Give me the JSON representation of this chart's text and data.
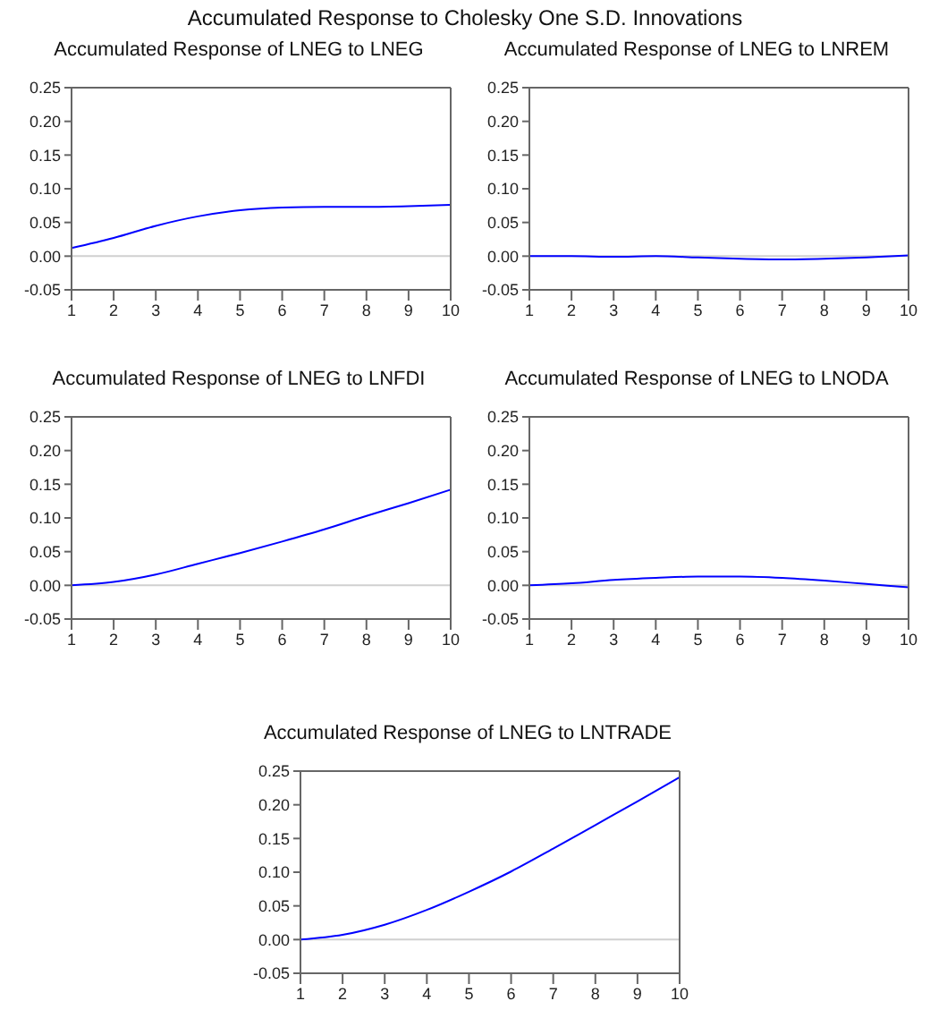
{
  "chart_data": [
    {
      "type": "line",
      "title": "Accumulated Response of LNEG to LNEG",
      "annotations": [
        "Accumulated Response to Cholesky One S.D. Innovations"
      ],
      "categories": [
        "1",
        "2",
        "3",
        "4",
        "5",
        "6",
        "7",
        "8",
        "9",
        "10"
      ],
      "series": [
        {
          "color": "#0000ff",
          "values": [
            0.012,
            0.027,
            0.045,
            0.059,
            0.068,
            0.072,
            0.073,
            0.073,
            0.074,
            0.076
          ]
        }
      ],
      "ylim": [
        -0.05,
        0.25
      ],
      "yticks": [
        {
          "value": -0.05,
          "label": "-0.05"
        },
        {
          "value": 0,
          "label": "0.00"
        },
        {
          "value": 0.05,
          "label": "0.05"
        },
        {
          "value": 0.1,
          "label": "0.10"
        },
        {
          "value": 0.15,
          "label": "0.15"
        },
        {
          "value": 0.2,
          "label": "0.20"
        },
        {
          "value": 0.25,
          "label": "0.25"
        }
      ],
      "ref_lines": [
        {
          "axis": "y",
          "value": 0,
          "color": "#d0d0d0"
        }
      ],
      "grid": false,
      "legend": false
    },
    {
      "type": "line",
      "title": "Accumulated Response of LNEG to LNREM",
      "categories": [
        "1",
        "2",
        "3",
        "4",
        "5",
        "6",
        "7",
        "8",
        "9",
        "10"
      ],
      "series": [
        {
          "color": "#0000ff",
          "values": [
            0,
            0,
            -0.001,
            0,
            -0.002,
            -0.004,
            -0.005,
            -0.004,
            -0.002,
            0.001
          ]
        }
      ],
      "ylim": [
        -0.05,
        0.25
      ],
      "yticks": [
        {
          "value": -0.05,
          "label": "-0.05"
        },
        {
          "value": 0,
          "label": "0.00"
        },
        {
          "value": 0.05,
          "label": "0.05"
        },
        {
          "value": 0.1,
          "label": "0.10"
        },
        {
          "value": 0.15,
          "label": "0.15"
        },
        {
          "value": 0.2,
          "label": "0.20"
        },
        {
          "value": 0.25,
          "label": "0.25"
        }
      ],
      "ref_lines": [
        {
          "axis": "y",
          "value": 0,
          "color": "#d0d0d0"
        }
      ],
      "grid": false,
      "legend": false
    },
    {
      "type": "line",
      "title": "Accumulated Response of LNEG to LNFDI",
      "categories": [
        "1",
        "2",
        "3",
        "4",
        "5",
        "6",
        "7",
        "8",
        "9",
        "10"
      ],
      "series": [
        {
          "color": "#0000ff",
          "values": [
            0,
            0.005,
            0.016,
            0.032,
            0.048,
            0.065,
            0.083,
            0.103,
            0.122,
            0.142
          ]
        }
      ],
      "ylim": [
        -0.05,
        0.25
      ],
      "yticks": [
        {
          "value": -0.05,
          "label": "-0.05"
        },
        {
          "value": 0,
          "label": "0.00"
        },
        {
          "value": 0.05,
          "label": "0.05"
        },
        {
          "value": 0.1,
          "label": "0.10"
        },
        {
          "value": 0.15,
          "label": "0.15"
        },
        {
          "value": 0.2,
          "label": "0.20"
        },
        {
          "value": 0.25,
          "label": "0.25"
        }
      ],
      "ref_lines": [
        {
          "axis": "y",
          "value": 0,
          "color": "#d0d0d0"
        }
      ],
      "grid": false,
      "legend": false
    },
    {
      "type": "line",
      "title": "Accumulated Response of LNEG to LNODA",
      "categories": [
        "1",
        "2",
        "3",
        "4",
        "5",
        "6",
        "7",
        "8",
        "9",
        "10"
      ],
      "series": [
        {
          "color": "#0000ff",
          "values": [
            0,
            0.003,
            0.008,
            0.011,
            0.013,
            0.013,
            0.011,
            0.007,
            0.002,
            -0.003
          ]
        }
      ],
      "ylim": [
        -0.05,
        0.25
      ],
      "yticks": [
        {
          "value": -0.05,
          "label": "-0.05"
        },
        {
          "value": 0,
          "label": "0.00"
        },
        {
          "value": 0.05,
          "label": "0.05"
        },
        {
          "value": 0.1,
          "label": "0.10"
        },
        {
          "value": 0.15,
          "label": "0.15"
        },
        {
          "value": 0.2,
          "label": "0.20"
        },
        {
          "value": 0.25,
          "label": "0.25"
        }
      ],
      "ref_lines": [
        {
          "axis": "y",
          "value": 0,
          "color": "#d0d0d0"
        }
      ],
      "grid": false,
      "legend": false
    },
    {
      "type": "line",
      "title": "Accumulated Response of LNEG to LNTRADE",
      "categories": [
        "1",
        "2",
        "3",
        "4",
        "5",
        "6",
        "7",
        "8",
        "9",
        "10"
      ],
      "series": [
        {
          "color": "#0000ff",
          "values": [
            0,
            0.007,
            0.022,
            0.044,
            0.071,
            0.101,
            0.135,
            0.17,
            0.205,
            0.241
          ]
        }
      ],
      "ylim": [
        -0.05,
        0.25
      ],
      "yticks": [
        {
          "value": -0.05,
          "label": "-0.05"
        },
        {
          "value": 0,
          "label": "0.00"
        },
        {
          "value": 0.05,
          "label": "0.05"
        },
        {
          "value": 0.1,
          "label": "0.10"
        },
        {
          "value": 0.15,
          "label": "0.15"
        },
        {
          "value": 0.2,
          "label": "0.20"
        },
        {
          "value": 0.25,
          "label": "0.25"
        }
      ],
      "ref_lines": [
        {
          "axis": "y",
          "value": 0,
          "color": "#d0d0d0"
        }
      ],
      "grid": false,
      "legend": false
    }
  ]
}
